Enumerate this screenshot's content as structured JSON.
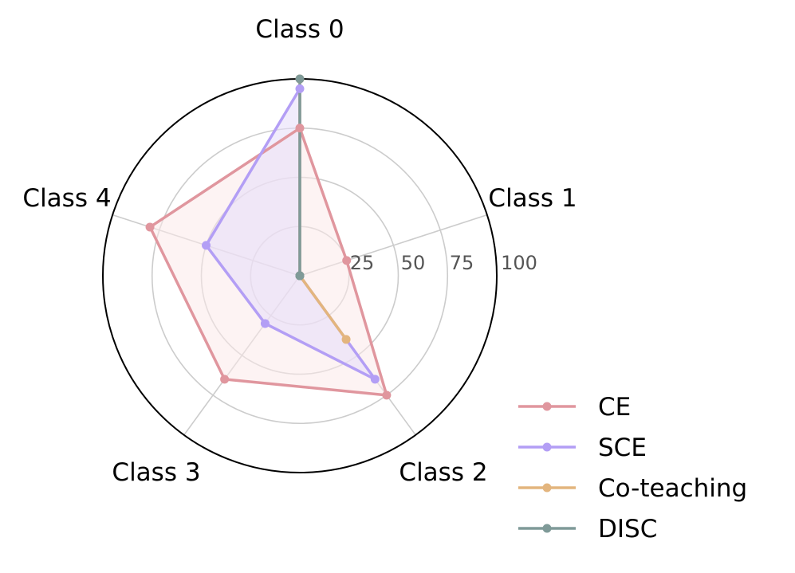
{
  "chart_data": {
    "type": "radar",
    "categories": [
      "Class 0",
      "Class 1",
      "Class 2",
      "Class 3",
      "Class 4"
    ],
    "rlim": [
      0,
      100
    ],
    "rticks": [
      25,
      50,
      75,
      100
    ],
    "rtick_labels": [
      "25",
      "50",
      "75",
      "100"
    ],
    "grid": true,
    "legend_position": "bottom-right",
    "series": [
      {
        "name": "CE",
        "values": [
          75,
          25,
          75,
          65,
          80
        ],
        "color": "#e0969e",
        "fill": "#fbeaea",
        "fill_opacity": 0.55
      },
      {
        "name": "SCE",
        "values": [
          95,
          0,
          65,
          30,
          50
        ],
        "color": "#b39ef5",
        "fill": "#e6dcf9",
        "fill_opacity": 0.55
      },
      {
        "name": "Co-teaching",
        "values": [
          100,
          0,
          40,
          0,
          0
        ],
        "color": "#e3b57e"
      },
      {
        "name": "DISC",
        "values": [
          100,
          0,
          0,
          0,
          0
        ],
        "color": "#7f9a98"
      }
    ]
  }
}
